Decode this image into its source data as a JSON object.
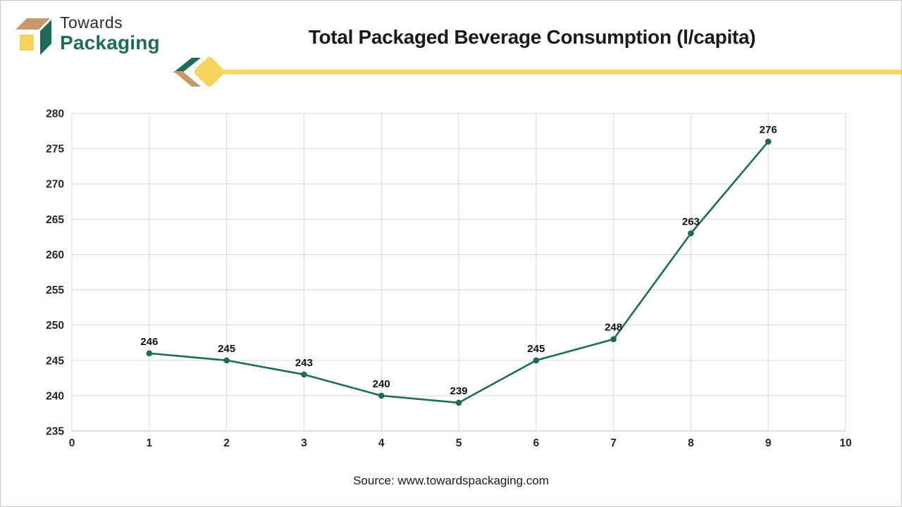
{
  "logo": {
    "line1": "Towards",
    "line2": "Packaging"
  },
  "header": {
    "title": "Total Packaged Beverage Consumption (l/capita)"
  },
  "footer": {
    "source": "Source: www.towardspackaging.com"
  },
  "colors": {
    "green": "#1e6b5a",
    "tan": "#c49a6b",
    "yellow": "#f5d35e",
    "line": "#1e6b5a",
    "grid": "#d9d9d9",
    "axis": "#bfbfbf",
    "ink": "#1a1a1a",
    "tick": "#262626"
  },
  "chart_data": {
    "type": "line",
    "title": "Total Packaged Beverage Consumption (l/capita)",
    "x": [
      1,
      2,
      3,
      4,
      5,
      6,
      7,
      8,
      9
    ],
    "values": [
      246,
      245,
      243,
      240,
      239,
      245,
      248,
      263,
      276
    ],
    "data_labels": [
      "246",
      "245",
      "243",
      "240",
      "239",
      "245",
      "248",
      "263",
      "276"
    ],
    "xlabel": "",
    "ylabel": "",
    "xlim": [
      0,
      10
    ],
    "ylim": [
      235,
      280
    ],
    "x_ticks": [
      0,
      1,
      2,
      3,
      4,
      5,
      6,
      7,
      8,
      9,
      10
    ],
    "y_ticks": [
      235,
      240,
      245,
      250,
      255,
      260,
      265,
      270,
      275,
      280
    ],
    "grid": true,
    "legend": false,
    "line_color": "#1e6b5a",
    "marker": "circle"
  }
}
